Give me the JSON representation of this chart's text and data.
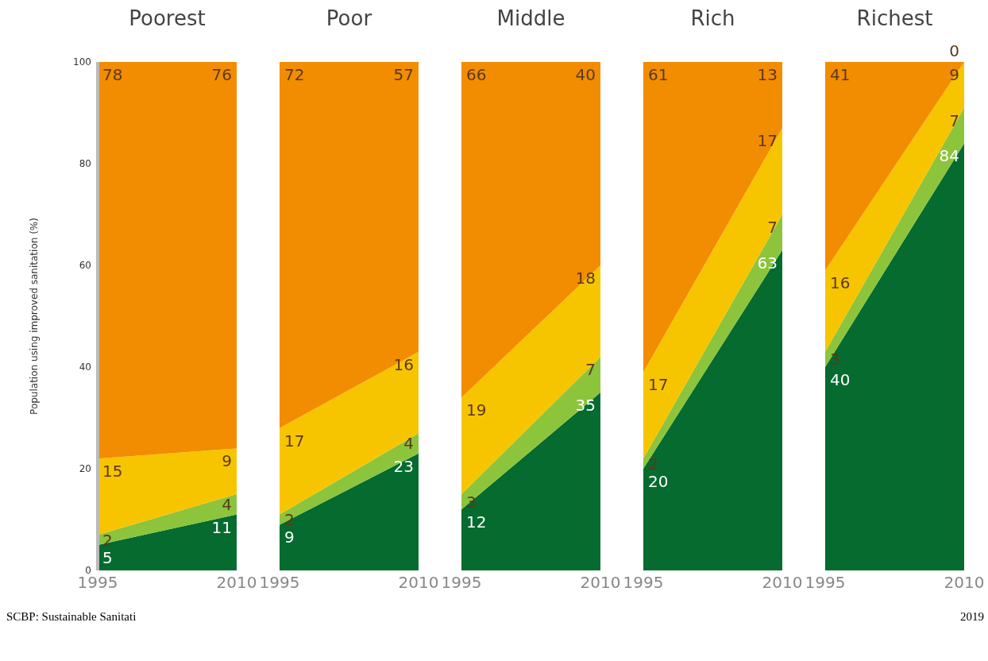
{
  "chart_data": [
    {
      "type": "area",
      "title": "Poorest",
      "stacked": true,
      "data_labels": true,
      "categories": [
        "1995",
        "2010"
      ],
      "ylim": [
        0,
        100
      ],
      "yticks": [
        0,
        20,
        40,
        60,
        80,
        100
      ],
      "ylabel": "Population using improved sanitation (%)",
      "annotations": [
        "SCBP: Sustainable Sanitati"
      ],
      "series": [
        {
          "color": "#056b2f",
          "values": [
            5,
            11
          ]
        },
        {
          "color": "#8cc43c",
          "values": [
            2,
            4
          ]
        },
        {
          "color": "#f7c500",
          "values": [
            15,
            9
          ]
        },
        {
          "color": "#f28c00",
          "values": [
            78,
            76
          ]
        }
      ]
    },
    {
      "type": "area",
      "title": "Poor",
      "stacked": true,
      "data_labels": true,
      "tick_labels": "x",
      "categories": [
        "1995",
        "2010"
      ],
      "ylim": [
        0,
        100
      ],
      "series": [
        {
          "color": "#056b2f",
          "values": [
            9,
            23
          ]
        },
        {
          "color": "#8cc43c",
          "values": [
            2,
            4
          ]
        },
        {
          "color": "#f7c500",
          "values": [
            17,
            16
          ]
        },
        {
          "color": "#f28c00",
          "values": [
            72,
            57
          ]
        }
      ]
    },
    {
      "type": "area",
      "title": "Middle",
      "stacked": true,
      "data_labels": true,
      "tick_labels": "x",
      "categories": [
        "1995",
        "2010"
      ],
      "ylim": [
        0,
        100
      ],
      "series": [
        {
          "color": "#056b2f",
          "values": [
            12,
            35
          ]
        },
        {
          "color": "#8cc43c",
          "values": [
            3,
            7
          ]
        },
        {
          "color": "#f7c500",
          "values": [
            19,
            18
          ]
        },
        {
          "color": "#f28c00",
          "values": [
            66,
            40
          ]
        }
      ]
    },
    {
      "type": "area",
      "title": "Rich",
      "stacked": true,
      "data_labels": true,
      "tick_labels": "x",
      "categories": [
        "1995",
        "2010"
      ],
      "ylim": [
        0,
        100
      ],
      "series": [
        {
          "color": "#056b2f",
          "values": [
            20,
            63
          ]
        },
        {
          "color": "#8cc43c",
          "values": [
            2,
            7
          ]
        },
        {
          "color": "#f7c500",
          "values": [
            17,
            17
          ]
        },
        {
          "color": "#f28c00",
          "values": [
            61,
            13
          ]
        }
      ]
    },
    {
      "type": "area",
      "title": "Richest",
      "stacked": true,
      "data_labels": true,
      "tick_labels": "x",
      "categories": [
        "1995",
        "2010"
      ],
      "ylim": [
        0,
        100
      ],
      "annotations": [
        "2019"
      ],
      "series": [
        {
          "color": "#056b2f",
          "values": [
            40,
            84
          ]
        },
        {
          "color": "#8cc43c",
          "values": [
            3,
            7
          ]
        },
        {
          "color": "#f7c500",
          "values": [
            16,
            9
          ]
        },
        {
          "color": "#f28c00",
          "values": [
            41,
            0
          ]
        }
      ]
    }
  ]
}
